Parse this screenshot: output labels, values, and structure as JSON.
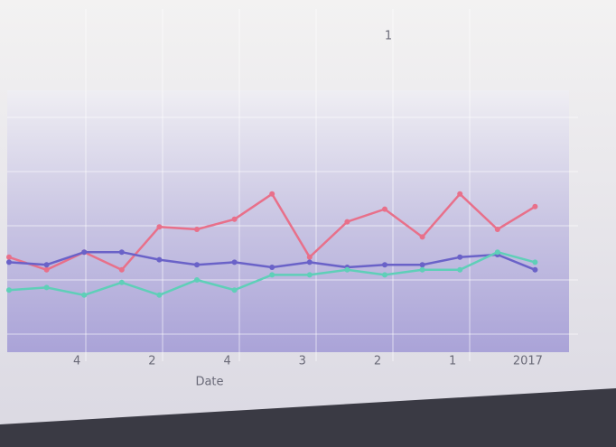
{
  "chart_data": {
    "type": "line",
    "annotation": "1",
    "x_label": "Date",
    "categories": [
      null,
      null,
      "4",
      null,
      "2",
      null,
      "4",
      null,
      "3",
      null,
      "2",
      null,
      "1",
      null,
      "2017"
    ],
    "ylim": [
      0,
      100
    ],
    "series": [
      {
        "color": "#e8708a",
        "values": [
          34,
          29,
          36,
          29,
          46,
          45,
          49,
          59,
          34,
          48,
          53,
          42,
          59,
          45,
          54
        ]
      },
      {
        "color": "#6a62c8",
        "values": [
          32,
          31,
          36,
          36,
          33,
          31,
          32,
          30,
          32,
          30,
          31,
          31,
          34,
          35,
          29
        ]
      },
      {
        "color": "#5fcfb8",
        "values": [
          21,
          22,
          19,
          24,
          19,
          25,
          21,
          27,
          27,
          29,
          27,
          29,
          29,
          36,
          32
        ]
      }
    ]
  }
}
